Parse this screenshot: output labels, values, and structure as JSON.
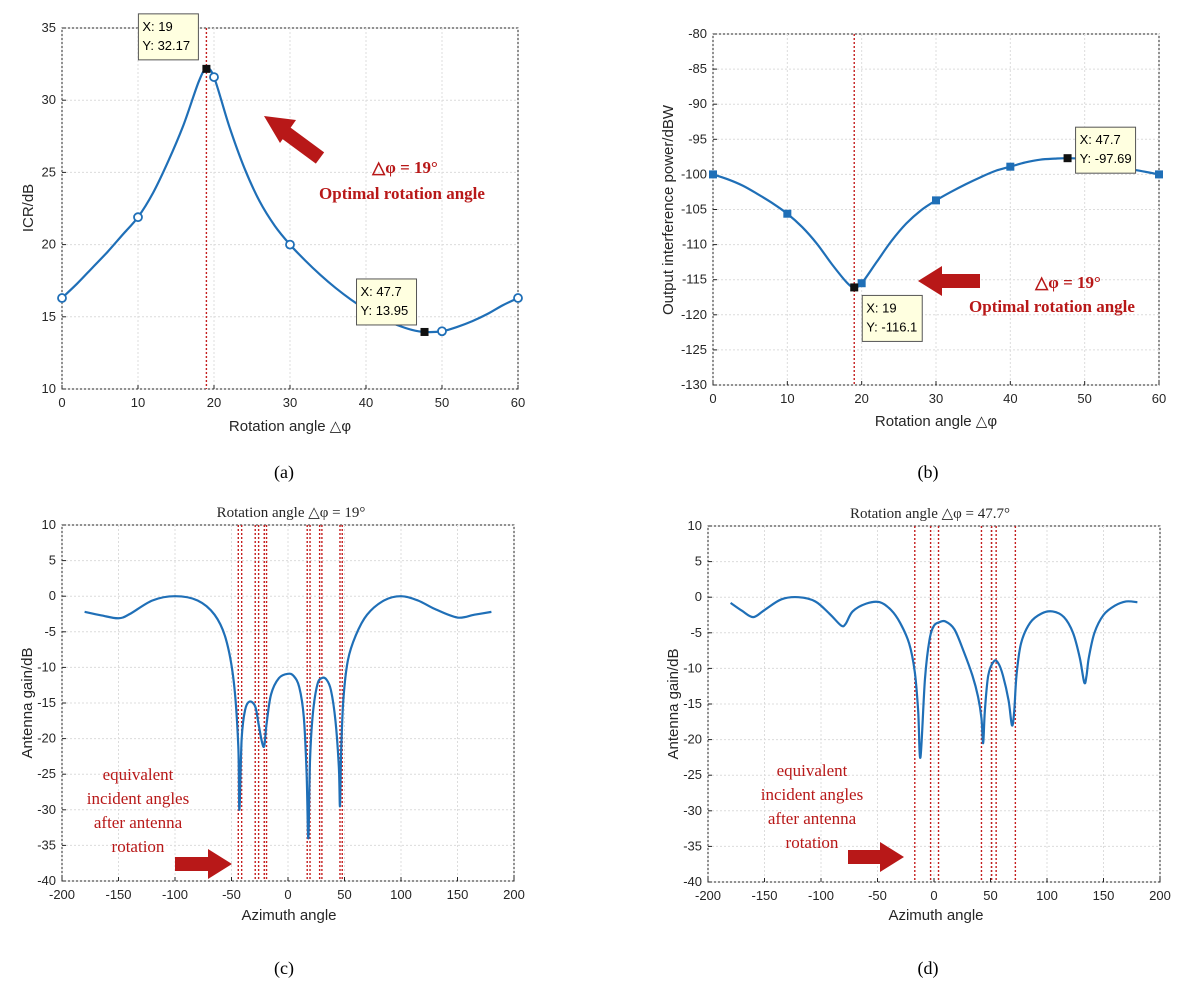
{
  "chart_data": [
    {
      "type": "line",
      "caption": "(a)",
      "title": "",
      "xlabel": "Rotation angle △φ",
      "ylabel": "ICR/dB",
      "xlim": [
        0,
        60
      ],
      "ylim": [
        10,
        35
      ],
      "xticks": [
        "0",
        "10",
        "20",
        "30",
        "40",
        "50",
        "60"
      ],
      "yticks": [
        "10",
        "15",
        "20",
        "25",
        "30",
        "35"
      ],
      "grid": true,
      "color": "#1f6fb7",
      "marker": "circle",
      "x": [
        0,
        2,
        4,
        6,
        8,
        10,
        12,
        14,
        16,
        18,
        19,
        20,
        22,
        24,
        26,
        28,
        30,
        32,
        34,
        36,
        38,
        40,
        42,
        44,
        46,
        47.7,
        50,
        52,
        54,
        56,
        58,
        60
      ],
      "y": [
        16.3,
        17.3,
        18.4,
        19.5,
        20.7,
        21.9,
        23.6,
        25.8,
        28.3,
        31.3,
        32.17,
        31.6,
        28.2,
        25.3,
        23.0,
        21.3,
        20.0,
        18.9,
        17.9,
        17.0,
        16.2,
        15.5,
        14.9,
        14.45,
        14.1,
        13.95,
        14.0,
        14.3,
        14.7,
        15.2,
        15.8,
        16.3
      ],
      "markers": [
        {
          "x": 0,
          "y": 16.3
        },
        {
          "x": 10,
          "y": 21.9
        },
        {
          "x": 20,
          "y": 31.6
        },
        {
          "x": 30,
          "y": 20.0
        },
        {
          "x": 50,
          "y": 14.0
        },
        {
          "x": 60,
          "y": 16.3
        }
      ],
      "datatips": [
        {
          "x": 19,
          "y": 32.17,
          "lines": [
            "X: 19",
            "Y: 32.17"
          ]
        },
        {
          "x": 47.7,
          "y": 13.95,
          "lines": [
            "X: 47.7",
            "Y: 13.95"
          ]
        }
      ],
      "vlines": [
        19
      ],
      "annotations": [
        "△φ = 19°",
        "Optimal rotation angle"
      ]
    },
    {
      "type": "line",
      "caption": "(b)",
      "title": "",
      "xlabel": "Rotation angle △φ",
      "ylabel": "Output interference power/dBW",
      "xlim": [
        0,
        60
      ],
      "ylim": [
        -130,
        -80
      ],
      "xticks": [
        "0",
        "10",
        "20",
        "30",
        "40",
        "50",
        "60"
      ],
      "yticks": [
        "-130",
        "-125",
        "-120",
        "-115",
        "-110",
        "-105",
        "-100",
        "-95",
        "-90",
        "-85",
        "-80"
      ],
      "grid": true,
      "color": "#1f6fb7",
      "marker": "square",
      "x": [
        0,
        2,
        4,
        6,
        8,
        10,
        12,
        14,
        16,
        18,
        19,
        20,
        22,
        24,
        26,
        28,
        30,
        32,
        34,
        36,
        38,
        40,
        42,
        44,
        46,
        47.7,
        50,
        52,
        54,
        56,
        58,
        60
      ],
      "y": [
        -100.0,
        -100.7,
        -101.6,
        -102.8,
        -104.1,
        -105.6,
        -107.5,
        -109.9,
        -112.8,
        -115.4,
        -116.1,
        -115.5,
        -112.5,
        -109.5,
        -107.0,
        -105.1,
        -103.7,
        -102.5,
        -101.4,
        -100.4,
        -99.5,
        -98.9,
        -98.3,
        -97.9,
        -97.75,
        -97.69,
        -97.8,
        -98.2,
        -98.7,
        -99.2,
        -99.6,
        -100.0
      ],
      "markers": [
        {
          "x": 0,
          "y": -100.0
        },
        {
          "x": 10,
          "y": -105.6
        },
        {
          "x": 20,
          "y": -115.5
        },
        {
          "x": 30,
          "y": -103.7
        },
        {
          "x": 40,
          "y": -98.9
        },
        {
          "x": 50,
          "y": -97.8
        },
        {
          "x": 60,
          "y": -100.0
        }
      ],
      "datatips": [
        {
          "x": 19,
          "y": -116.1,
          "lines": [
            "X: 19",
            "Y: -116.1"
          ]
        },
        {
          "x": 47.7,
          "y": -97.69,
          "lines": [
            "X: 47.7",
            "Y: -97.69"
          ]
        }
      ],
      "vlines": [
        19
      ],
      "annotations": [
        "△φ = 19°",
        "Optimal rotation angle"
      ]
    },
    {
      "type": "line",
      "caption": "(c)",
      "title": "Rotation angle △φ = 19°",
      "xlabel": "Azimuth angle",
      "ylabel": "Antenna gain/dB",
      "xlim": [
        -200,
        200
      ],
      "ylim": [
        -40,
        10
      ],
      "xticks": [
        "-200",
        "-150",
        "-100",
        "-50",
        "0",
        "50",
        "100",
        "150",
        "200"
      ],
      "yticks": [
        "-40",
        "-35",
        "-30",
        "-25",
        "-20",
        "-15",
        "-10",
        "-5",
        "0",
        "5",
        "10"
      ],
      "grid": true,
      "color": "#1f6fb7",
      "x": [
        -180,
        -165,
        -150,
        -140,
        -120,
        -100,
        -80,
        -65,
        -55,
        -48,
        -44,
        -43,
        -41,
        -38,
        -34,
        -29,
        -26,
        -23,
        -21,
        -19,
        -15,
        -8,
        0,
        5,
        10,
        14,
        16.5,
        18,
        19.5,
        22,
        26,
        30,
        34,
        38,
        42,
        45,
        46,
        47,
        49,
        53,
        60,
        70,
        85,
        100,
        115,
        130,
        150,
        165,
        180
      ],
      "y": [
        -2.2,
        -2.7,
        -3.1,
        -2.5,
        -0.6,
        0.0,
        -0.6,
        -2.6,
        -6.0,
        -12.0,
        -21.0,
        -30.0,
        -20.0,
        -16.0,
        -14.8,
        -15.5,
        -18.0,
        -20.5,
        -21.0,
        -18.0,
        -13.8,
        -11.5,
        -10.9,
        -11.2,
        -12.8,
        -17.0,
        -25.0,
        -34.0,
        -23.0,
        -16.5,
        -12.4,
        -11.5,
        -11.7,
        -13.2,
        -17.5,
        -24.0,
        -29.5,
        -22.0,
        -14.5,
        -9.0,
        -5.5,
        -2.6,
        -0.6,
        0.0,
        -0.6,
        -1.8,
        -3.0,
        -2.6,
        -2.2
      ],
      "vlines": [
        -44,
        -41,
        -29,
        -26,
        -21,
        -19,
        17,
        19.5,
        28,
        30,
        46,
        48
      ],
      "annotations": [
        "equivalent",
        "incident angles",
        "after antenna",
        "rotation"
      ]
    },
    {
      "type": "line",
      "caption": "(d)",
      "title": "Rotation angle △φ = 47.7°",
      "xlabel": "Azimuth angle",
      "ylabel": "Antenna gain/dB",
      "xlim": [
        -200,
        200
      ],
      "ylim": [
        -40,
        10
      ],
      "xticks": [
        "-200",
        "-150",
        "-100",
        "-50",
        "0",
        "50",
        "100",
        "150",
        "200"
      ],
      "yticks": [
        "-40",
        "-35",
        "-30",
        "-25",
        "-20",
        "-15",
        "-10",
        "-5",
        "0",
        "5",
        "10"
      ],
      "grid": true,
      "color": "#1f6fb7",
      "x": [
        -180,
        -170,
        -160,
        -150,
        -135,
        -120,
        -105,
        -92,
        -82,
        -78,
        -72,
        -60,
        -48,
        -38,
        -30,
        -22,
        -17,
        -14,
        -12,
        -8,
        -4,
        0,
        5,
        10,
        18,
        26,
        34,
        39,
        42,
        43.5,
        45,
        48,
        53,
        57,
        61,
        66,
        69,
        71,
        73,
        77,
        85,
        95,
        105,
        115,
        123,
        129,
        133,
        135,
        137,
        142,
        150,
        160,
        170,
        180
      ],
      "y": [
        -0.8,
        -1.9,
        -2.8,
        -1.8,
        -0.3,
        0.0,
        -0.6,
        -2.4,
        -4.0,
        -3.7,
        -2.0,
        -0.9,
        -0.7,
        -1.8,
        -3.6,
        -6.5,
        -10.5,
        -16.0,
        -22.5,
        -11.5,
        -6.0,
        -4.0,
        -3.5,
        -3.4,
        -4.5,
        -7.5,
        -11.0,
        -14.0,
        -17.0,
        -20.5,
        -16.0,
        -11.0,
        -9.0,
        -9.3,
        -11.0,
        -14.5,
        -18.0,
        -16.0,
        -11.0,
        -6.5,
        -3.6,
        -2.3,
        -2.0,
        -2.8,
        -5.0,
        -8.5,
        -12.0,
        -11.0,
        -8.5,
        -5.0,
        -2.5,
        -1.2,
        -0.6,
        -0.7
      ],
      "vlines": [
        -17,
        -3,
        4,
        42,
        51,
        55,
        72
      ],
      "annotations": [
        "equivalent",
        "incident angles",
        "after antenna",
        "rotation"
      ]
    }
  ]
}
